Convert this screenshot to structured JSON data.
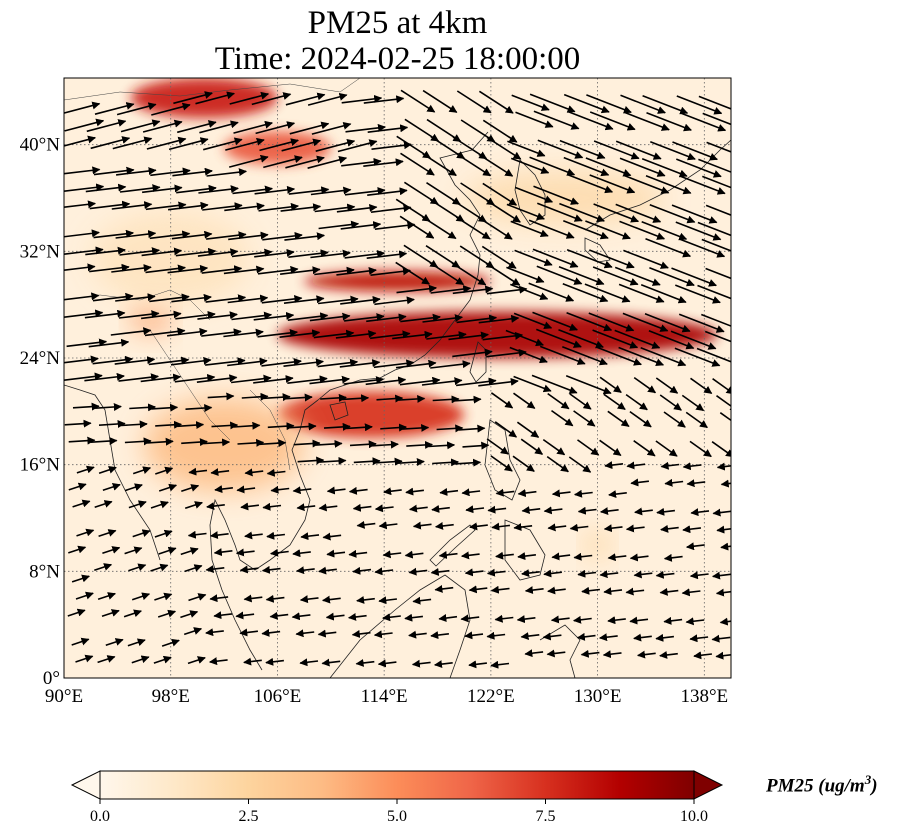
{
  "title": {
    "line1": "PM25 at 4km",
    "line2": "Time: 2024-02-25 18:00:00"
  },
  "map": {
    "extent": {
      "lon": [
        90,
        140
      ],
      "lat": [
        0,
        45
      ]
    },
    "lon_ticks": [
      {
        "value": 90,
        "label": "90°E"
      },
      {
        "value": 98,
        "label": "98°E"
      },
      {
        "value": 106,
        "label": "106°E"
      },
      {
        "value": 114,
        "label": "114°E"
      },
      {
        "value": 122,
        "label": "122°E"
      },
      {
        "value": 130,
        "label": "130°E"
      },
      {
        "value": 138,
        "label": "138°E"
      }
    ],
    "lat_ticks": [
      {
        "value": 0,
        "label": "0°"
      },
      {
        "value": 8,
        "label": "8°N"
      },
      {
        "value": 16,
        "label": "16°N"
      },
      {
        "value": 24,
        "label": "24°N"
      },
      {
        "value": 32,
        "label": "32°N"
      },
      {
        "value": 40,
        "label": "40°N"
      }
    ],
    "gridlines": true,
    "field": "PM25",
    "level": "4km",
    "plumes": [
      {
        "lon": [
          108,
          122
        ],
        "lat": [
          29,
          30.5
        ],
        "value": 8.5
      },
      {
        "lon": [
          106,
          139
        ],
        "lat": [
          24,
          27.5
        ],
        "value": 9.0
      },
      {
        "lon": [
          106,
          120
        ],
        "lat": [
          18,
          21.5
        ],
        "value": 7.5
      },
      {
        "lon": [
          95,
          106
        ],
        "lat": [
          42,
          45
        ],
        "value": 8.0
      },
      {
        "lon": [
          102,
          110
        ],
        "lat": [
          38.5,
          41
        ],
        "value": 6.5
      },
      {
        "lon": [
          95,
          98
        ],
        "lat": [
          26,
          28
        ],
        "value": 4.5
      },
      {
        "lon": [
          96,
          108
        ],
        "lat": [
          14,
          21
        ],
        "value": 3.5
      },
      {
        "lon": [
          120,
          135
        ],
        "lat": [
          34,
          38
        ],
        "value": 2.0
      },
      {
        "lon": [
          129,
          131
        ],
        "lat": [
          9,
          11
        ],
        "value": 2.5
      },
      {
        "lon": [
          92,
          104
        ],
        "lat": [
          28,
          35
        ],
        "value": 1.5
      }
    ]
  },
  "colorbar": {
    "min": 0,
    "max": 10,
    "ticks": [
      {
        "value": 0,
        "label": "0.0"
      },
      {
        "value": 2.5,
        "label": "2.5"
      },
      {
        "value": 5,
        "label": "5.0"
      },
      {
        "value": 7.5,
        "label": "7.5"
      },
      {
        "value": 10,
        "label": "10.0"
      }
    ],
    "colormap": [
      "#fff7ec",
      "#fee8c8",
      "#fdd49e",
      "#fdbb84",
      "#fc8d59",
      "#ef6548",
      "#d7301f",
      "#b30000",
      "#7f0000"
    ],
    "label": "PM25 (ug/m^3)",
    "label_main": "PM25 (ug/m",
    "label_sup": "3",
    "label_end": ")"
  }
}
